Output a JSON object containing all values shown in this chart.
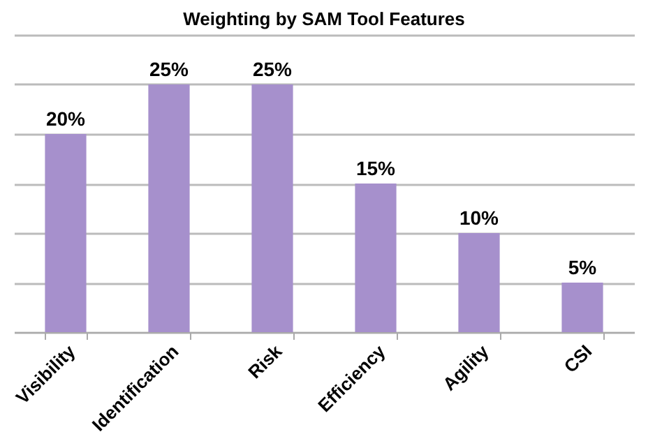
{
  "chart_data": {
    "type": "bar",
    "title": "Weighting by SAM Tool Features",
    "categories": [
      "Visibility",
      "Identification",
      "Risk",
      "Efficiency",
      "Agility",
      "CSI"
    ],
    "values": [
      20,
      25,
      25,
      15,
      10,
      5
    ],
    "value_labels": [
      "20%",
      "25%",
      "25%",
      "15%",
      "10%",
      "5%"
    ],
    "color": "#a690cc",
    "ylim": [
      0,
      30
    ],
    "yticks": [
      {
        "value": 0,
        "label": null
      },
      {
        "value": 5,
        "label": null
      },
      {
        "value": 10,
        "label": null
      },
      {
        "value": 15,
        "label": null
      },
      {
        "value": 20,
        "label": null
      },
      {
        "value": 25,
        "label": null
      },
      {
        "value": 30,
        "label": null
      }
    ],
    "tick_labels": "x",
    "grid": "y"
  }
}
